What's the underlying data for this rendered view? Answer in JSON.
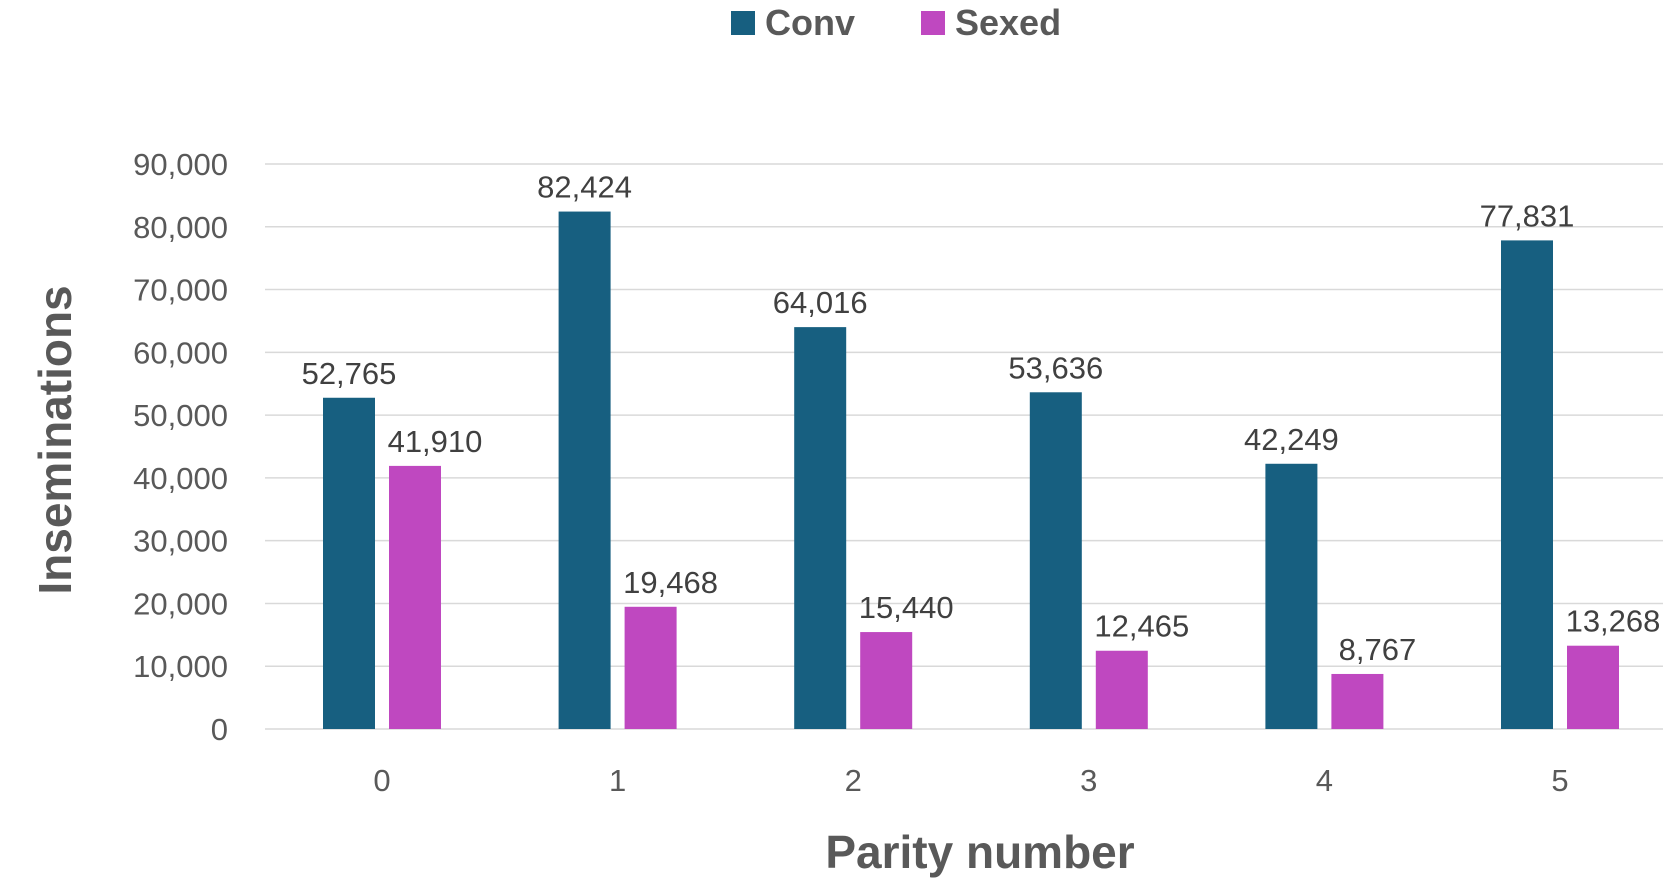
{
  "chart_data": {
    "type": "bar",
    "categories": [
      "0",
      "1",
      "2",
      "3",
      "4",
      "5"
    ],
    "series": [
      {
        "name": "Conv",
        "values": [
          52765,
          82424,
          64016,
          53636,
          42249,
          77831
        ],
        "labels": [
          "52,765",
          "82,424",
          "64,016",
          "53,636",
          "42,249",
          "77,831"
        ],
        "color": "#175F80"
      },
      {
        "name": "Sexed",
        "values": [
          41910,
          19468,
          15440,
          12465,
          8767,
          13268
        ],
        "labels": [
          "41,910",
          "19,468",
          "15,440",
          "12,465",
          "8,767",
          "13,268"
        ],
        "color": "#BF48C0"
      }
    ],
    "xlabel": "Parity number",
    "ylabel": "Inseminations",
    "ylim": [
      0,
      90000
    ],
    "yticks": [
      0,
      10000,
      20000,
      30000,
      40000,
      50000,
      60000,
      70000,
      80000,
      90000
    ],
    "ytick_labels": [
      "0",
      "10,000",
      "20,000",
      "30,000",
      "40,000",
      "50,000",
      "60,000",
      "70,000",
      "80,000",
      "90,000"
    ],
    "grid": true,
    "legend_position": "top-center",
    "gridline_color": "#D9D9D9"
  }
}
